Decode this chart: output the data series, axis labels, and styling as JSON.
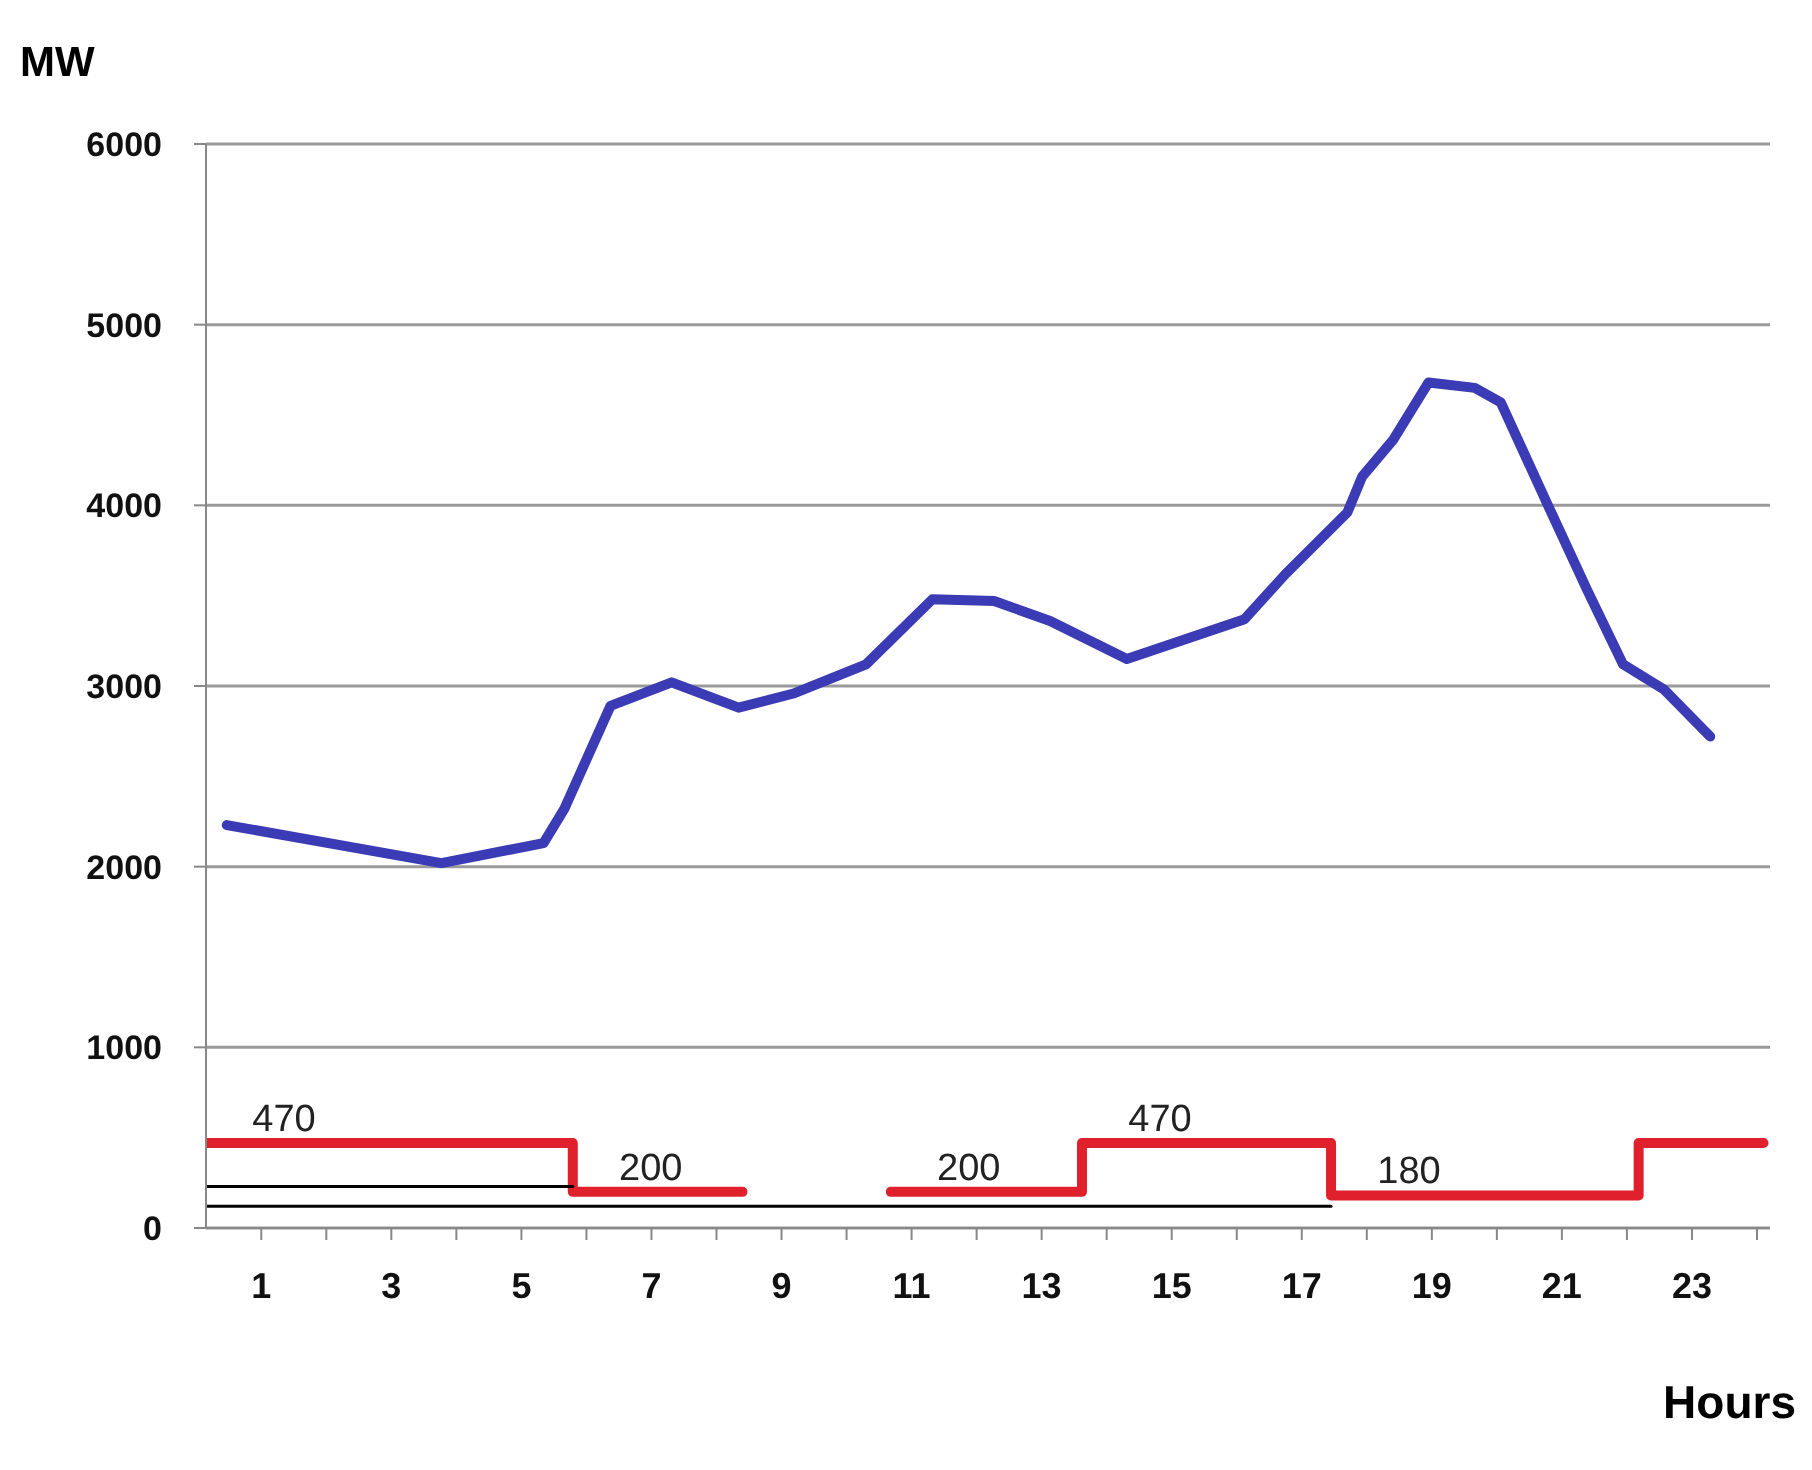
{
  "chart_data": {
    "type": "line",
    "xlabel": "Hours",
    "ylabel": "MW",
    "xlim": [
      0.15,
      24.2
    ],
    "ylim": [
      0,
      6000
    ],
    "xticks": [
      1,
      {
        "value": 2,
        "label": null
      },
      3,
      {
        "value": 4,
        "label": null
      },
      5,
      {
        "value": 6,
        "label": null
      },
      7,
      {
        "value": 8,
        "label": null
      },
      9,
      {
        "value": 10,
        "label": null
      },
      11,
      {
        "value": 12,
        "label": null
      },
      13,
      {
        "value": 14,
        "label": null
      },
      15,
      {
        "value": 16,
        "label": null
      },
      17,
      {
        "value": 18,
        "label": null
      },
      19,
      {
        "value": 20,
        "label": null
      },
      21,
      {
        "value": 22,
        "label": null
      },
      23,
      {
        "value": 24,
        "label": null
      }
    ],
    "yticks": [
      0,
      1000,
      2000,
      3000,
      4000,
      5000,
      6000
    ],
    "grid": "y",
    "legend": false,
    "marker": "none",
    "line_style": "solid",
    "series": [
      {
        "color": "#3b3bb5",
        "x": [
          0.47,
          3.77,
          5.34,
          5.66,
          6.37,
          7.31,
          8.34,
          9.2,
          10.3,
          11.32,
          12.27,
          13.13,
          14.31,
          16.12,
          16.75,
          17.7,
          17.93,
          18.4,
          18.95,
          19.66,
          20.06,
          20.76,
          21.39,
          21.94,
          22.57,
          23.28
        ],
        "values": [
          2230,
          2020,
          2130,
          2320,
          2890,
          3020,
          2880,
          2960,
          3120,
          3480,
          3470,
          3360,
          3150,
          3370,
          3620,
          3960,
          4160,
          4360,
          4680,
          4650,
          4570,
          4020,
          3530,
          3120,
          2980,
          2720
        ]
      },
      {
        "type": "step",
        "color": "#e0202c",
        "x": [
          0.15,
          5.79,
          8.4
        ],
        "values": [
          470,
          200,
          200
        ],
        "value_labels": [
          "470",
          "200",
          null
        ]
      },
      {
        "type": "step",
        "color": "#e0202c",
        "x": [
          10.68,
          13.62,
          17.45,
          22.18,
          24.1
        ],
        "values": [
          200,
          470,
          180,
          470,
          470
        ],
        "value_labels": [
          "200",
          "470",
          "180",
          null,
          null
        ]
      },
      {
        "color": "#000000",
        "x": [
          0.15,
          5.79
        ],
        "values": [
          230,
          230
        ]
      },
      {
        "color": "#000000",
        "x": [
          0.15,
          17.45
        ],
        "values": [
          120,
          120
        ]
      }
    ]
  }
}
